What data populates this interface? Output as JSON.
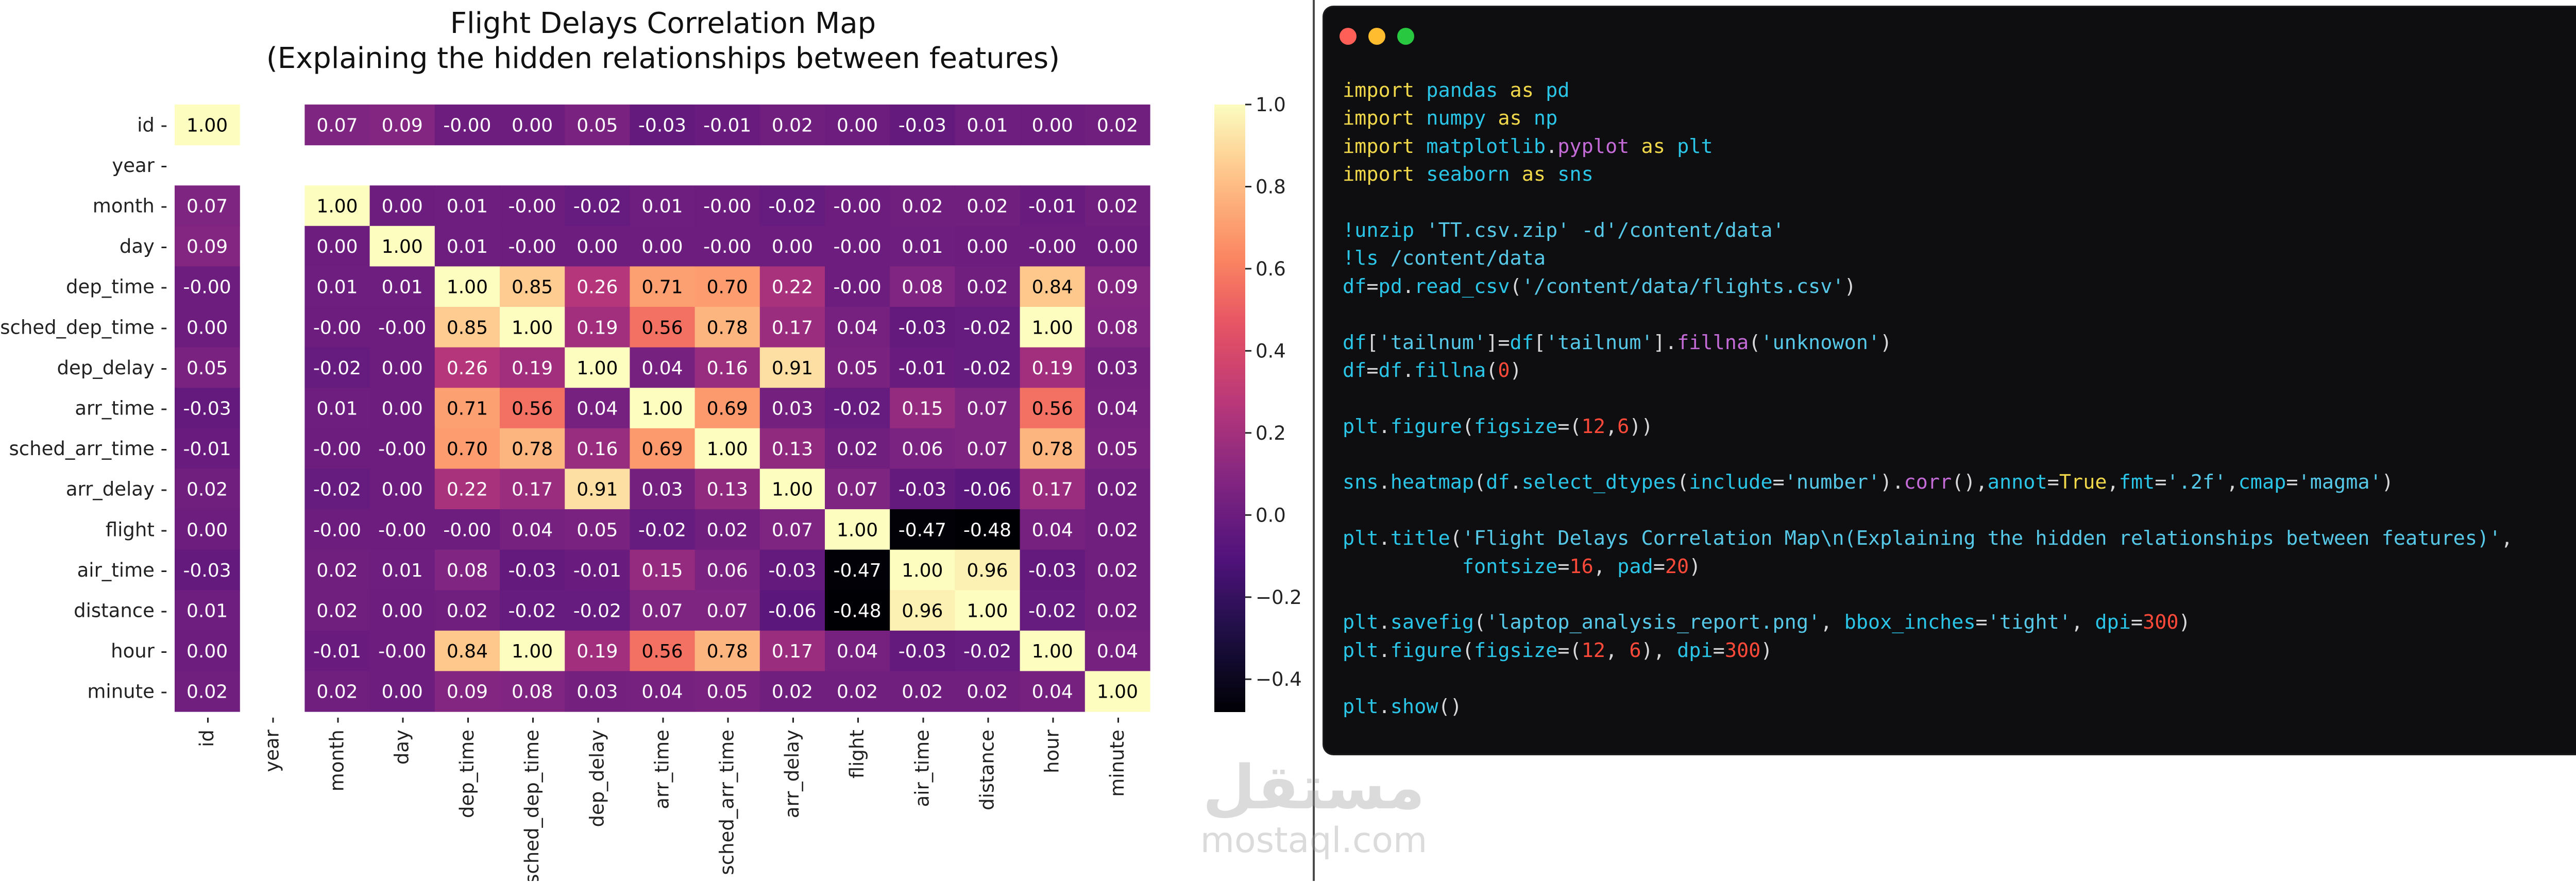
{
  "chart_data": {
    "type": "heatmap",
    "title": "Flight Delays Correlation Map",
    "subtitle": "(Explaining the hidden relationships between features)",
    "labels": [
      "id",
      "year",
      "month",
      "day",
      "dep_time",
      "sched_dep_time",
      "dep_delay",
      "arr_time",
      "sched_arr_time",
      "arr_delay",
      "flight",
      "air_time",
      "distance",
      "hour",
      "minute"
    ],
    "matrix": [
      [
        1.0,
        null,
        0.07,
        0.09,
        -0.0,
        0.0,
        0.05,
        -0.03,
        -0.01,
        0.02,
        0.0,
        -0.03,
        0.01,
        0.0,
        0.02
      ],
      [
        null,
        null,
        null,
        null,
        null,
        null,
        null,
        null,
        null,
        null,
        null,
        null,
        null,
        null,
        null
      ],
      [
        0.07,
        null,
        1.0,
        0.0,
        0.01,
        -0.0,
        -0.02,
        0.01,
        -0.0,
        -0.02,
        -0.0,
        0.02,
        0.02,
        -0.01,
        0.02
      ],
      [
        0.09,
        null,
        0.0,
        1.0,
        0.01,
        -0.0,
        0.0,
        0.0,
        -0.0,
        0.0,
        -0.0,
        0.01,
        0.0,
        -0.0,
        0.0
      ],
      [
        -0.0,
        null,
        0.01,
        0.01,
        1.0,
        0.85,
        0.26,
        0.71,
        0.7,
        0.22,
        -0.0,
        0.08,
        0.02,
        0.84,
        0.09
      ],
      [
        0.0,
        null,
        -0.0,
        -0.0,
        0.85,
        1.0,
        0.19,
        0.56,
        0.78,
        0.17,
        0.04,
        -0.03,
        -0.02,
        1.0,
        0.08
      ],
      [
        0.05,
        null,
        -0.02,
        0.0,
        0.26,
        0.19,
        1.0,
        0.04,
        0.16,
        0.91,
        0.05,
        -0.01,
        -0.02,
        0.19,
        0.03
      ],
      [
        -0.03,
        null,
        0.01,
        0.0,
        0.71,
        0.56,
        0.04,
        1.0,
        0.69,
        0.03,
        -0.02,
        0.15,
        0.07,
        0.56,
        0.04
      ],
      [
        -0.01,
        null,
        -0.0,
        -0.0,
        0.7,
        0.78,
        0.16,
        0.69,
        1.0,
        0.13,
        0.02,
        0.06,
        0.07,
        0.78,
        0.05
      ],
      [
        0.02,
        null,
        -0.02,
        0.0,
        0.22,
        0.17,
        0.91,
        0.03,
        0.13,
        1.0,
        0.07,
        -0.03,
        -0.06,
        0.17,
        0.02
      ],
      [
        0.0,
        null,
        -0.0,
        -0.0,
        -0.0,
        0.04,
        0.05,
        -0.02,
        0.02,
        0.07,
        1.0,
        -0.47,
        -0.48,
        0.04,
        0.02
      ],
      [
        -0.03,
        null,
        0.02,
        0.01,
        0.08,
        -0.03,
        -0.01,
        0.15,
        0.06,
        -0.03,
        -0.47,
        1.0,
        0.96,
        -0.03,
        0.02
      ],
      [
        0.01,
        null,
        0.02,
        0.0,
        0.02,
        -0.02,
        -0.02,
        0.07,
        0.07,
        -0.06,
        -0.48,
        0.96,
        1.0,
        -0.02,
        0.02
      ],
      [
        0.0,
        null,
        -0.01,
        -0.0,
        0.84,
        1.0,
        0.19,
        0.56,
        0.78,
        0.17,
        0.04,
        -0.03,
        -0.02,
        1.0,
        0.04
      ],
      [
        0.02,
        null,
        0.02,
        0.0,
        0.09,
        0.08,
        0.03,
        0.04,
        0.05,
        0.02,
        0.02,
        0.02,
        0.02,
        0.04,
        1.0
      ]
    ],
    "colorbar": {
      "range": [
        -0.48,
        1.0
      ],
      "ticks": [
        1.0,
        0.8,
        0.6,
        0.4,
        0.2,
        0.0,
        -0.2,
        -0.4
      ]
    },
    "colormap": "magma"
  },
  "window": {
    "controls": [
      "close",
      "minimize",
      "maximize"
    ],
    "colors": {
      "close": "#ff5f57",
      "minimize": "#febc2e",
      "maximize": "#28c840",
      "background": "#0e0e10"
    }
  },
  "code_lines": [
    [
      [
        "kw",
        "import "
      ],
      [
        "fn",
        "pandas "
      ],
      [
        "kw",
        "as "
      ],
      [
        "fn",
        "pd"
      ]
    ],
    [
      [
        "kw",
        "import "
      ],
      [
        "fn",
        "numpy "
      ],
      [
        "kw",
        "as "
      ],
      [
        "fn",
        "np"
      ]
    ],
    [
      [
        "kw",
        "import "
      ],
      [
        "fn",
        "matplotlib"
      ],
      [
        "pl",
        "."
      ],
      [
        "attr",
        "pyplot "
      ],
      [
        "kw",
        "as "
      ],
      [
        "fn",
        "plt"
      ]
    ],
    [
      [
        "kw",
        "import "
      ],
      [
        "fn",
        "seaborn "
      ],
      [
        "kw",
        "as "
      ],
      [
        "fn",
        "sns"
      ]
    ],
    [],
    [
      [
        "fn",
        "!unzip "
      ],
      [
        "str",
        "'TT.csv.zip' -d'/content/data'"
      ]
    ],
    [
      [
        "fn",
        "!ls "
      ],
      [
        "str",
        "/content/data"
      ]
    ],
    [
      [
        "fn",
        "df"
      ],
      [
        "pl",
        "="
      ],
      [
        "fn",
        "pd"
      ],
      [
        "pl",
        "."
      ],
      [
        "fn",
        "read_csv"
      ],
      [
        "pl",
        "("
      ],
      [
        "str",
        "'/content/data/flights.csv'"
      ],
      [
        "pl",
        ")"
      ]
    ],
    [],
    [
      [
        "fn",
        "df"
      ],
      [
        "pl",
        "["
      ],
      [
        "str",
        "'tailnum'"
      ],
      [
        "pl",
        "]="
      ],
      [
        "fn",
        "df"
      ],
      [
        "pl",
        "["
      ],
      [
        "str",
        "'tailnum'"
      ],
      [
        "pl",
        "]."
      ],
      [
        "attr",
        "fillna"
      ],
      [
        "pl",
        "("
      ],
      [
        "str",
        "'unknowon'"
      ],
      [
        "pl",
        ")"
      ]
    ],
    [
      [
        "fn",
        "df"
      ],
      [
        "pl",
        "="
      ],
      [
        "fn",
        "df"
      ],
      [
        "pl",
        "."
      ],
      [
        "fn",
        "fillna"
      ],
      [
        "pl",
        "("
      ],
      [
        "num",
        "0"
      ],
      [
        "pl",
        ")"
      ]
    ],
    [],
    [
      [
        "fn",
        "plt"
      ],
      [
        "pl",
        "."
      ],
      [
        "fn",
        "figure"
      ],
      [
        "pl",
        "("
      ],
      [
        "fn",
        "figsize"
      ],
      [
        "pl",
        "=("
      ],
      [
        "num",
        "12"
      ],
      [
        "pl",
        ","
      ],
      [
        "num",
        "6"
      ],
      [
        "pl",
        "))"
      ]
    ],
    [],
    [
      [
        "fn",
        "sns"
      ],
      [
        "pl",
        "."
      ],
      [
        "fn",
        "heatmap"
      ],
      [
        "pl",
        "("
      ],
      [
        "fn",
        "df"
      ],
      [
        "pl",
        "."
      ],
      [
        "fn",
        "select_dtypes"
      ],
      [
        "pl",
        "("
      ],
      [
        "fn",
        "include"
      ],
      [
        "pl",
        "="
      ],
      [
        "str",
        "'number'"
      ],
      [
        "pl",
        ")."
      ],
      [
        "attr",
        "corr"
      ],
      [
        "pl",
        "(),"
      ],
      [
        "fn",
        "annot"
      ],
      [
        "pl",
        "="
      ],
      [
        "bool",
        "True"
      ],
      [
        "pl",
        ","
      ],
      [
        "fn",
        "fmt"
      ],
      [
        "pl",
        "="
      ],
      [
        "str",
        "'.2f'"
      ],
      [
        "pl",
        ","
      ],
      [
        "fn",
        "cmap"
      ],
      [
        "pl",
        "="
      ],
      [
        "str",
        "'magma'"
      ],
      [
        "pl",
        ")"
      ]
    ],
    [],
    [
      [
        "fn",
        "plt"
      ],
      [
        "pl",
        "."
      ],
      [
        "fn",
        "title"
      ],
      [
        "pl",
        "("
      ],
      [
        "str",
        "'Flight Delays Correlation Map\\n(Explaining the hidden relationships between features)'"
      ],
      [
        "pl",
        ","
      ]
    ],
    [
      [
        "pl",
        "          "
      ],
      [
        "fn",
        "fontsize"
      ],
      [
        "pl",
        "="
      ],
      [
        "num",
        "16"
      ],
      [
        "pl",
        ", "
      ],
      [
        "fn",
        "pad"
      ],
      [
        "pl",
        "="
      ],
      [
        "num",
        "20"
      ],
      [
        "pl",
        ")"
      ]
    ],
    [],
    [
      [
        "fn",
        "plt"
      ],
      [
        "pl",
        "."
      ],
      [
        "fn",
        "savefig"
      ],
      [
        "pl",
        "("
      ],
      [
        "str",
        "'laptop_analysis_report.png'"
      ],
      [
        "pl",
        ", "
      ],
      [
        "fn",
        "bbox_inches"
      ],
      [
        "pl",
        "="
      ],
      [
        "str",
        "'tight'"
      ],
      [
        "pl",
        ", "
      ],
      [
        "fn",
        "dpi"
      ],
      [
        "pl",
        "="
      ],
      [
        "num",
        "300"
      ],
      [
        "pl",
        ")"
      ]
    ],
    [
      [
        "fn",
        "plt"
      ],
      [
        "pl",
        "."
      ],
      [
        "fn",
        "figure"
      ],
      [
        "pl",
        "("
      ],
      [
        "fn",
        "figsize"
      ],
      [
        "pl",
        "=("
      ],
      [
        "num",
        "12"
      ],
      [
        "pl",
        ", "
      ],
      [
        "num",
        "6"
      ],
      [
        "pl",
        "), "
      ],
      [
        "fn",
        "dpi"
      ],
      [
        "pl",
        "="
      ],
      [
        "num",
        "300"
      ],
      [
        "pl",
        ")"
      ]
    ],
    [],
    [
      [
        "fn",
        "plt"
      ],
      [
        "pl",
        "."
      ],
      [
        "fn",
        "show"
      ],
      [
        "pl",
        "()"
      ]
    ]
  ],
  "watermark": {
    "arabic": "مستقل",
    "latin": "mostaql.com"
  }
}
